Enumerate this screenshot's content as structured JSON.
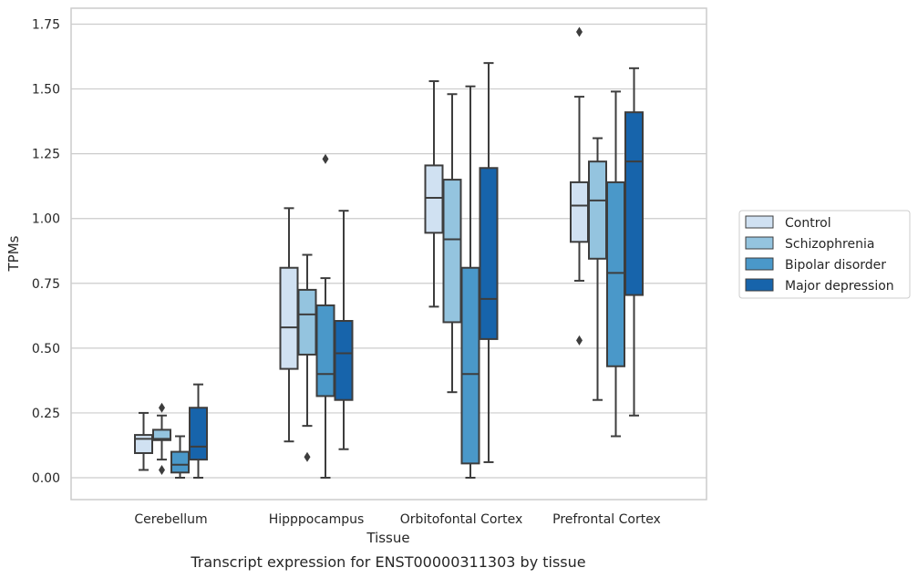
{
  "chart_data": {
    "type": "boxplot",
    "title": "",
    "xlabel": "Tissue",
    "ylabel": "TPMs",
    "caption": "Transcript expression for ENST00000311303 by tissue",
    "ylim": [
      -0.08,
      1.81
    ],
    "yticks": [
      0.0,
      0.25,
      0.5,
      0.75,
      1.0,
      1.25,
      1.5,
      1.75
    ],
    "ytick_labels": [
      "0.00",
      "0.25",
      "0.50",
      "0.75",
      "1.00",
      "1.25",
      "1.50",
      "1.75"
    ],
    "grid": "horizontal",
    "legend_position": "right",
    "categories": [
      "Cerebellum",
      "Hipppocampus",
      "Orbitofontal Cortex",
      "Prefrontal Cortex"
    ],
    "series": [
      {
        "name": "Control",
        "color": "#d0e1f2",
        "boxes": [
          {
            "whisker_low": 0.03,
            "q1": 0.095,
            "median": 0.15,
            "q3": 0.165,
            "whisker_high": 0.25,
            "outliers": []
          },
          {
            "whisker_low": 0.14,
            "q1": 0.42,
            "median": 0.58,
            "q3": 0.81,
            "whisker_high": 1.04,
            "outliers": []
          },
          {
            "whisker_low": 0.66,
            "q1": 0.945,
            "median": 1.08,
            "q3": 1.205,
            "whisker_high": 1.53,
            "outliers": []
          },
          {
            "whisker_low": 0.76,
            "q1": 0.91,
            "median": 1.05,
            "q3": 1.14,
            "whisker_high": 1.47,
            "outliers": [
              0.53,
              1.72
            ]
          }
        ]
      },
      {
        "name": "Schizophrenia",
        "color": "#94c4df",
        "boxes": [
          {
            "whisker_low": 0.07,
            "q1": 0.145,
            "median": 0.15,
            "q3": 0.185,
            "whisker_high": 0.24,
            "outliers": [
              0.03,
              0.27
            ]
          },
          {
            "whisker_low": 0.2,
            "q1": 0.475,
            "median": 0.63,
            "q3": 0.725,
            "whisker_high": 0.86,
            "outliers": [
              0.08
            ]
          },
          {
            "whisker_low": 0.33,
            "q1": 0.6,
            "median": 0.92,
            "q3": 1.15,
            "whisker_high": 1.48,
            "outliers": []
          },
          {
            "whisker_low": 0.3,
            "q1": 0.845,
            "median": 1.07,
            "q3": 1.22,
            "whisker_high": 1.31,
            "outliers": []
          }
        ]
      },
      {
        "name": "Bipolar disorder",
        "color": "#4a98c9",
        "boxes": [
          {
            "whisker_low": 0.0,
            "q1": 0.02,
            "median": 0.05,
            "q3": 0.1,
            "whisker_high": 0.16,
            "outliers": []
          },
          {
            "whisker_low": 0.0,
            "q1": 0.315,
            "median": 0.4,
            "q3": 0.665,
            "whisker_high": 0.77,
            "outliers": [
              1.23
            ]
          },
          {
            "whisker_low": 0.0,
            "q1": 0.055,
            "median": 0.4,
            "q3": 0.81,
            "whisker_high": 1.51,
            "outliers": []
          },
          {
            "whisker_low": 0.16,
            "q1": 0.43,
            "median": 0.79,
            "q3": 1.14,
            "whisker_high": 1.49,
            "outliers": []
          }
        ]
      },
      {
        "name": "Major depression",
        "color": "#1764ab",
        "boxes": [
          {
            "whisker_low": 0.0,
            "q1": 0.07,
            "median": 0.12,
            "q3": 0.27,
            "whisker_high": 0.36,
            "outliers": []
          },
          {
            "whisker_low": 0.11,
            "q1": 0.3,
            "median": 0.48,
            "q3": 0.605,
            "whisker_high": 1.03,
            "outliers": []
          },
          {
            "whisker_low": 0.06,
            "q1": 0.535,
            "median": 0.69,
            "q3": 1.195,
            "whisker_high": 1.6,
            "outliers": []
          },
          {
            "whisker_low": 0.24,
            "q1": 0.705,
            "median": 1.22,
            "q3": 1.41,
            "whisker_high": 1.58,
            "outliers": []
          }
        ]
      }
    ]
  }
}
